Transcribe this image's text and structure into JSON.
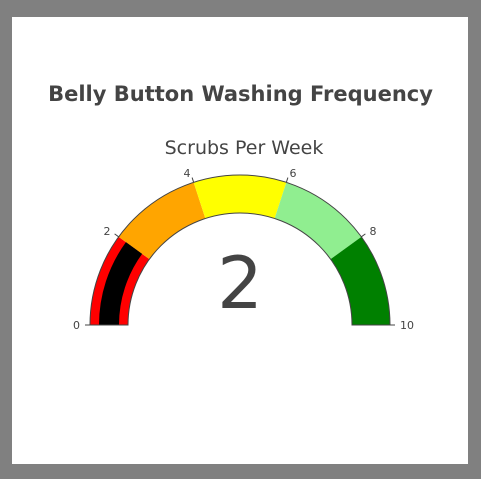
{
  "card_title": "Belly Button Washing Frequency",
  "colors": {
    "background": "#808080",
    "card": "#ffffff",
    "text": "#444444",
    "bar": "#000000",
    "tick": "#444444"
  },
  "chart_data": {
    "type": "gauge",
    "title": "Scrubs Per Week",
    "value": 2,
    "value_label": "2",
    "range": [
      0,
      10
    ],
    "tick_values": [
      0,
      2,
      4,
      6,
      8,
      10
    ],
    "tick_labels": [
      "0",
      "2",
      "4",
      "6",
      "8",
      "10"
    ],
    "steps": [
      {
        "range": [
          0,
          2
        ],
        "color": "#ff0000"
      },
      {
        "range": [
          2,
          4
        ],
        "color": "#ffa500"
      },
      {
        "range": [
          4,
          6
        ],
        "color": "#ffff00"
      },
      {
        "range": [
          6,
          8
        ],
        "color": "#90ee90"
      },
      {
        "range": [
          8,
          10
        ],
        "color": "#008000"
      }
    ]
  }
}
